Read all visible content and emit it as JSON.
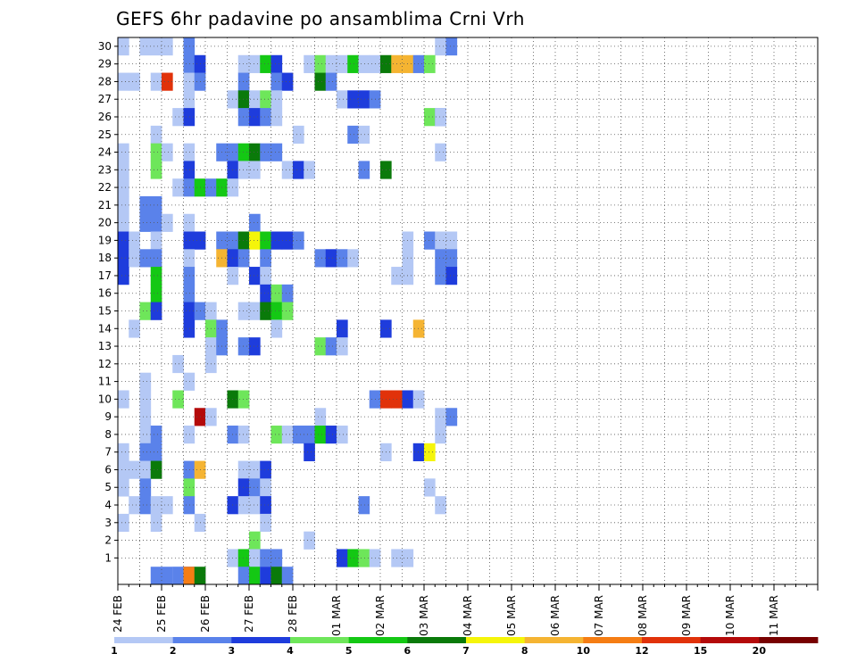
{
  "chart_data": {
    "type": "heatmap",
    "title": "GEFS 6hr padavine po ansamblima Crni Vrh",
    "xlabel": "",
    "ylabel": "",
    "x_tick_labels": [
      "24 FEB",
      "25 FEB",
      "26 FEB",
      "27 FEB",
      "28 FEB",
      "01 MAR",
      "02 MAR",
      "03 MAR",
      "04 MAR",
      "05 MAR",
      "06 MAR",
      "07 MAR",
      "08 MAR",
      "09 MAR",
      "10 MAR",
      "11 MAR"
    ],
    "y_tick_labels": [
      "1",
      "2",
      "3",
      "4",
      "5",
      "6",
      "7",
      "8",
      "9",
      "10",
      "11",
      "12",
      "13",
      "14",
      "15",
      "16",
      "17",
      "18",
      "19",
      "20",
      "21",
      "22",
      "23",
      "24",
      "25",
      "26",
      "27",
      "28",
      "29",
      "30"
    ],
    "x_range_days": [
      0,
      16
    ],
    "steps_per_day": 4,
    "ensemble_range": [
      0,
      30
    ],
    "grid": true,
    "legend_placement": "bottom",
    "levels": [
      "1",
      "2",
      "3",
      "4",
      "5",
      "6",
      "7",
      "8",
      "10",
      "12",
      "15",
      "20"
    ],
    "level_colors": [
      "#b4c8f5",
      "#5a82ea",
      "#1e3cdc",
      "#6ee65a",
      "#14c814",
      "#0a7a0a",
      "#f5f50a",
      "#f5b432",
      "#f57d14",
      "#e1320a",
      "#b40a0a",
      "#780000"
    ],
    "series": [
      {
        "member": 30,
        "cells": [
          [
            0,
            1
          ],
          [
            2,
            1
          ],
          [
            3,
            1
          ],
          [
            4,
            1
          ],
          [
            6,
            2
          ],
          [
            29,
            1
          ],
          [
            30,
            2
          ]
        ]
      },
      {
        "member": 29,
        "cells": [
          [
            6,
            2
          ],
          [
            7,
            3
          ],
          [
            11,
            1
          ],
          [
            12,
            1
          ],
          [
            13,
            5
          ],
          [
            14,
            3
          ],
          [
            17,
            1
          ],
          [
            18,
            4
          ],
          [
            19,
            1
          ],
          [
            20,
            1
          ],
          [
            21,
            5
          ],
          [
            22,
            1
          ],
          [
            23,
            1
          ],
          [
            24,
            6
          ],
          [
            25,
            8
          ],
          [
            26,
            8
          ],
          [
            27,
            2
          ],
          [
            28,
            4
          ]
        ]
      },
      {
        "member": 28,
        "cells": [
          [
            0,
            1
          ],
          [
            1,
            1
          ],
          [
            3,
            1
          ],
          [
            4,
            10
          ],
          [
            6,
            1
          ],
          [
            7,
            2
          ],
          [
            11,
            2
          ],
          [
            14,
            2
          ],
          [
            15,
            3
          ],
          [
            18,
            6
          ],
          [
            19,
            2
          ]
        ]
      },
      {
        "member": 27,
        "cells": [
          [
            6,
            1
          ],
          [
            10,
            1
          ],
          [
            11,
            6
          ],
          [
            12,
            1
          ],
          [
            13,
            4
          ],
          [
            14,
            1
          ],
          [
            20,
            1
          ],
          [
            21,
            3
          ],
          [
            22,
            3
          ],
          [
            23,
            2
          ]
        ]
      },
      {
        "member": 26,
        "cells": [
          [
            5,
            1
          ],
          [
            6,
            3
          ],
          [
            11,
            2
          ],
          [
            12,
            3
          ],
          [
            13,
            2
          ],
          [
            14,
            1
          ],
          [
            28,
            4
          ],
          [
            29,
            2
          ],
          [
            29,
            1
          ]
        ]
      },
      {
        "member": 25,
        "cells": [
          [
            3,
            1
          ],
          [
            16,
            1
          ],
          [
            21,
            2
          ],
          [
            22,
            1
          ]
        ]
      },
      {
        "member": 24,
        "cells": [
          [
            0,
            1
          ],
          [
            3,
            4
          ],
          [
            4,
            1
          ],
          [
            6,
            1
          ],
          [
            9,
            2
          ],
          [
            10,
            2
          ],
          [
            11,
            5
          ],
          [
            12,
            6
          ],
          [
            13,
            2
          ],
          [
            14,
            2
          ],
          [
            29,
            1
          ]
        ]
      },
      {
        "member": 23,
        "cells": [
          [
            0,
            1
          ],
          [
            3,
            4
          ],
          [
            6,
            3
          ],
          [
            10,
            3
          ],
          [
            11,
            1
          ],
          [
            12,
            1
          ],
          [
            15,
            1
          ],
          [
            16,
            3
          ],
          [
            17,
            1
          ],
          [
            22,
            2
          ],
          [
            24,
            6
          ]
        ]
      },
      {
        "member": 22,
        "cells": [
          [
            0,
            1
          ],
          [
            5,
            1
          ],
          [
            6,
            2
          ],
          [
            7,
            5
          ],
          [
            8,
            2
          ],
          [
            9,
            5
          ],
          [
            10,
            1
          ]
        ]
      },
      {
        "member": 21,
        "cells": [
          [
            0,
            1
          ],
          [
            2,
            2
          ],
          [
            3,
            2
          ]
        ]
      },
      {
        "member": 20,
        "cells": [
          [
            0,
            1
          ],
          [
            2,
            2
          ],
          [
            3,
            2
          ],
          [
            4,
            1
          ],
          [
            6,
            1
          ],
          [
            12,
            2
          ]
        ]
      },
      {
        "member": 19,
        "cells": [
          [
            0,
            3
          ],
          [
            1,
            1
          ],
          [
            3,
            1
          ],
          [
            6,
            3
          ],
          [
            7,
            3
          ],
          [
            9,
            2
          ],
          [
            10,
            2
          ],
          [
            11,
            6
          ],
          [
            12,
            7
          ],
          [
            13,
            5
          ],
          [
            14,
            3
          ],
          [
            15,
            3
          ],
          [
            16,
            2
          ],
          [
            26,
            1
          ],
          [
            28,
            2
          ],
          [
            29,
            1
          ],
          [
            30,
            1
          ]
        ]
      },
      {
        "member": 18,
        "cells": [
          [
            0,
            3
          ],
          [
            1,
            1
          ],
          [
            2,
            2
          ],
          [
            3,
            2
          ],
          [
            6,
            1
          ],
          [
            9,
            8
          ],
          [
            10,
            3
          ],
          [
            11,
            2
          ],
          [
            13,
            2
          ],
          [
            18,
            2
          ],
          [
            19,
            3
          ],
          [
            20,
            2
          ],
          [
            21,
            1
          ],
          [
            26,
            1
          ],
          [
            29,
            2
          ],
          [
            30,
            2
          ]
        ]
      },
      {
        "member": 17,
        "cells": [
          [
            0,
            3
          ],
          [
            3,
            5
          ],
          [
            6,
            2
          ],
          [
            10,
            1
          ],
          [
            12,
            3
          ],
          [
            13,
            1
          ],
          [
            25,
            1
          ],
          [
            26,
            1
          ],
          [
            29,
            2
          ],
          [
            30,
            3
          ]
        ]
      },
      {
        "member": 16,
        "cells": [
          [
            3,
            5
          ],
          [
            6,
            2
          ],
          [
            13,
            3
          ],
          [
            14,
            4
          ],
          [
            15,
            2
          ]
        ]
      },
      {
        "member": 15,
        "cells": [
          [
            2,
            4
          ],
          [
            3,
            3
          ],
          [
            6,
            3
          ],
          [
            7,
            2
          ],
          [
            8,
            1
          ],
          [
            11,
            1
          ],
          [
            12,
            1
          ],
          [
            13,
            6
          ],
          [
            14,
            5
          ],
          [
            15,
            4
          ]
        ]
      },
      {
        "member": 14,
        "cells": [
          [
            1,
            1
          ],
          [
            6,
            3
          ],
          [
            8,
            4
          ],
          [
            9,
            2
          ],
          [
            14,
            1
          ],
          [
            20,
            3
          ],
          [
            24,
            3
          ],
          [
            27,
            8
          ]
        ]
      },
      {
        "member": 13,
        "cells": [
          [
            8,
            1
          ],
          [
            9,
            2
          ],
          [
            11,
            2
          ],
          [
            12,
            3
          ],
          [
            18,
            4
          ],
          [
            19,
            2
          ],
          [
            20,
            1
          ]
        ]
      },
      {
        "member": 12,
        "cells": [
          [
            5,
            1
          ],
          [
            8,
            1
          ]
        ]
      },
      {
        "member": 11,
        "cells": [
          [
            2,
            1
          ],
          [
            6,
            1
          ]
        ]
      },
      {
        "member": 10,
        "cells": [
          [
            0,
            1
          ],
          [
            2,
            1
          ],
          [
            5,
            4
          ],
          [
            10,
            6
          ],
          [
            11,
            4
          ],
          [
            23,
            2
          ],
          [
            24,
            10
          ],
          [
            25,
            10
          ],
          [
            26,
            3
          ],
          [
            27,
            1
          ]
        ]
      },
      {
        "member": 9,
        "cells": [
          [
            2,
            1
          ],
          [
            7,
            11
          ],
          [
            8,
            1
          ],
          [
            18,
            1
          ],
          [
            29,
            1
          ],
          [
            30,
            2
          ]
        ]
      },
      {
        "member": 8,
        "cells": [
          [
            2,
            1
          ],
          [
            3,
            2
          ],
          [
            6,
            1
          ],
          [
            10,
            2
          ],
          [
            11,
            1
          ],
          [
            14,
            4
          ],
          [
            15,
            1
          ],
          [
            16,
            2
          ],
          [
            17,
            2
          ],
          [
            18,
            5
          ],
          [
            19,
            3
          ],
          [
            20,
            1
          ],
          [
            29,
            1
          ]
        ]
      },
      {
        "member": 7,
        "cells": [
          [
            0,
            1
          ],
          [
            2,
            2
          ],
          [
            3,
            2
          ],
          [
            17,
            3
          ],
          [
            24,
            1
          ],
          [
            27,
            3
          ],
          [
            28,
            7
          ]
        ]
      },
      {
        "member": 6,
        "cells": [
          [
            0,
            1
          ],
          [
            1,
            1
          ],
          [
            2,
            1
          ],
          [
            3,
            6
          ],
          [
            6,
            2
          ],
          [
            7,
            8
          ],
          [
            11,
            1
          ],
          [
            12,
            1
          ],
          [
            13,
            3
          ]
        ]
      },
      {
        "member": 5,
        "cells": [
          [
            0,
            1
          ],
          [
            2,
            2
          ],
          [
            6,
            4
          ],
          [
            11,
            3
          ],
          [
            12,
            2
          ],
          [
            13,
            1
          ],
          [
            28,
            1
          ]
        ]
      },
      {
        "member": 4,
        "cells": [
          [
            1,
            1
          ],
          [
            2,
            2
          ],
          [
            3,
            1
          ],
          [
            4,
            1
          ],
          [
            6,
            2
          ],
          [
            10,
            3
          ],
          [
            11,
            1
          ],
          [
            12,
            1
          ],
          [
            13,
            3
          ],
          [
            22,
            2
          ],
          [
            29,
            1
          ]
        ]
      },
      {
        "member": 3,
        "cells": [
          [
            0,
            1
          ],
          [
            3,
            1
          ],
          [
            7,
            1
          ],
          [
            13,
            1
          ]
        ]
      },
      {
        "member": 2,
        "cells": [
          [
            12,
            4
          ],
          [
            17,
            1
          ]
        ]
      },
      {
        "member": 1,
        "cells": [
          [
            10,
            1
          ],
          [
            11,
            5
          ],
          [
            12,
            1
          ],
          [
            13,
            2
          ],
          [
            14,
            2
          ],
          [
            20,
            1
          ],
          [
            20,
            3
          ],
          [
            21,
            5
          ],
          [
            22,
            4
          ],
          [
            23,
            1
          ],
          [
            25,
            1
          ],
          [
            26,
            1
          ]
        ]
      },
      {
        "member": 0,
        "cells": [
          [
            3,
            2
          ],
          [
            4,
            2
          ],
          [
            5,
            1
          ],
          [
            5,
            2
          ],
          [
            6,
            3
          ],
          [
            6,
            9
          ],
          [
            7,
            6
          ],
          [
            11,
            2
          ],
          [
            12,
            5
          ],
          [
            13,
            1
          ],
          [
            13,
            3
          ],
          [
            14,
            6
          ],
          [
            15,
            2
          ]
        ]
      }
    ]
  }
}
